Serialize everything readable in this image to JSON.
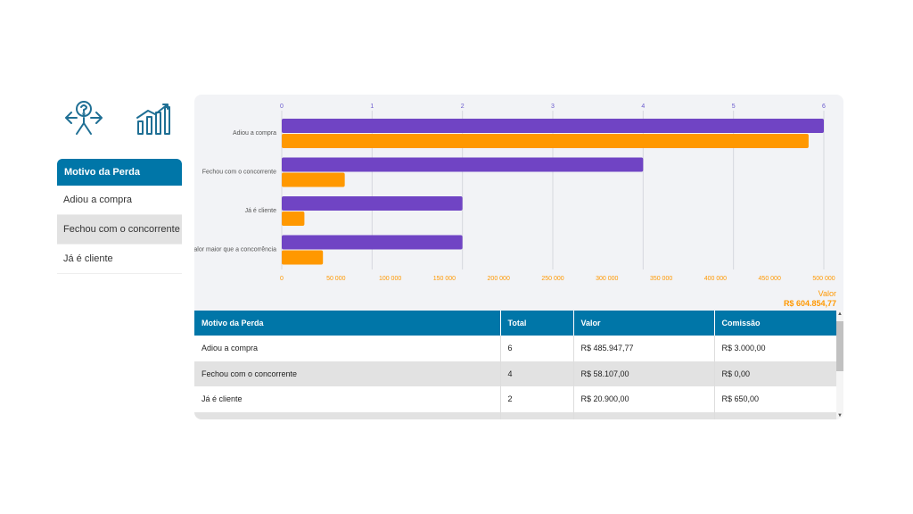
{
  "sidebar": {
    "header": "Motivo da Perda",
    "items": [
      {
        "label": "Adiou a compra"
      },
      {
        "label": "Fechou com o concorrente"
      },
      {
        "label": "Já é cliente"
      }
    ]
  },
  "chart_data": {
    "type": "bar",
    "orientation": "horizontal",
    "categories": [
      "Adiou a compra",
      "Fechou com o concorrente",
      "Já é cliente",
      "Valor maior que a concorrência"
    ],
    "series": [
      {
        "axis": "top",
        "values": [
          6,
          4,
          2,
          2
        ],
        "color": "#7044c4"
      },
      {
        "name": "Valor",
        "axis": "bottom",
        "values": [
          485947.77,
          58107,
          20900,
          38000
        ],
        "color": "#ff9800"
      }
    ],
    "top_axis": {
      "range": [
        0,
        6
      ],
      "ticks": [
        "0",
        "1",
        "2",
        "3",
        "4",
        "5",
        "6"
      ]
    },
    "bottom_axis": {
      "range": [
        0,
        500000
      ],
      "ticks": [
        "0",
        "50 000",
        "100 000",
        "150 000",
        "200 000",
        "250 000",
        "300 000",
        "350 000",
        "400 000",
        "450 000",
        "500 000"
      ]
    },
    "grid": true
  },
  "legend": {
    "label": "Valor",
    "value": "R$ 604.854,77"
  },
  "table": {
    "columns": [
      "Motivo da Perda",
      "Total",
      "Valor",
      "Comissão"
    ],
    "rows": [
      {
        "motivo": "Adiou a compra",
        "total": "6",
        "valor": "R$ 485.947,77",
        "comissao": "R$ 3.000,00"
      },
      {
        "motivo": "Fechou com o concorrente",
        "total": "4",
        "valor": "R$ 58.107,00",
        "comissao": "R$ 0,00"
      },
      {
        "motivo": "Já é cliente",
        "total": "2",
        "valor": "R$ 20.900,00",
        "comissao": "R$ 650,00"
      }
    ]
  },
  "colors": {
    "primary": "#0076a8",
    "count_bar": "#7044c4",
    "value_bar": "#ff9800"
  },
  "icons": [
    "decision-icon",
    "growth-chart-icon"
  ]
}
